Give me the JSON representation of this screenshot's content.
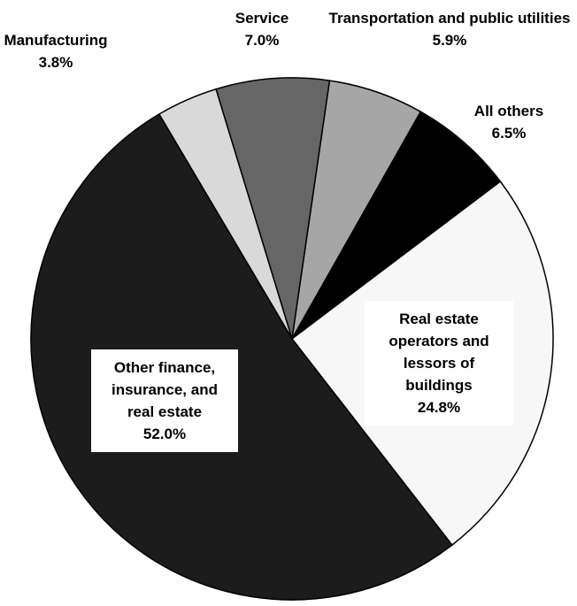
{
  "chart_data": {
    "type": "pie",
    "categories": [
      "Manufacturing",
      "Service",
      "Transportation and public utilities",
      "All others",
      "Real estate operators and lessors of buildings",
      "Other finance, insurance, and real estate"
    ],
    "values": [
      3.8,
      7.0,
      5.9,
      6.5,
      24.8,
      52.0
    ],
    "value_labels": [
      "3.8%",
      "7.0%",
      "5.9%",
      "6.5%",
      "24.8%",
      "52.0%"
    ],
    "colors": [
      "#d9d9d9",
      "#666666",
      "#a6a6a6",
      "#000000",
      "#f7f7f7",
      "#1c1c1c"
    ]
  }
}
